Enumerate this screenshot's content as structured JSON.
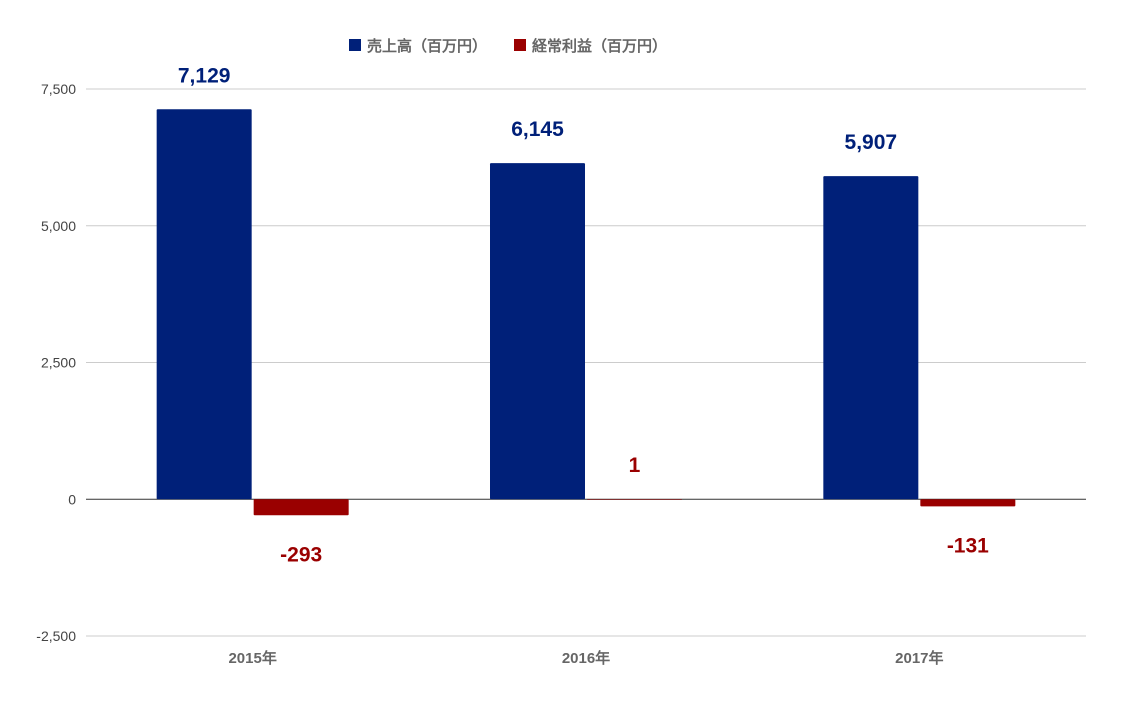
{
  "chart_data": {
    "type": "bar",
    "categories": [
      "2015年",
      "2016年",
      "2017年"
    ],
    "series": [
      {
        "name": "売上高（百万円）",
        "values": [
          7129,
          6145,
          5907
        ],
        "labels": [
          "7,129",
          "6,145",
          "5,907"
        ],
        "color": "#002079"
      },
      {
        "name": "経常利益（百万円）",
        "values": [
          -293,
          1,
          -131
        ],
        "labels": [
          "-293",
          "1",
          "-131"
        ],
        "color": "#9a0000"
      }
    ],
    "title": "",
    "xlabel": "",
    "ylabel": "",
    "ylim": [
      -2500,
      7500
    ],
    "yticks": [
      -2500,
      0,
      2500,
      5000,
      7500
    ],
    "ytick_labels": [
      "-2,500",
      "0",
      "2,500",
      "5,000",
      "7,500"
    ],
    "grid": true,
    "legend_position": "top-center"
  }
}
